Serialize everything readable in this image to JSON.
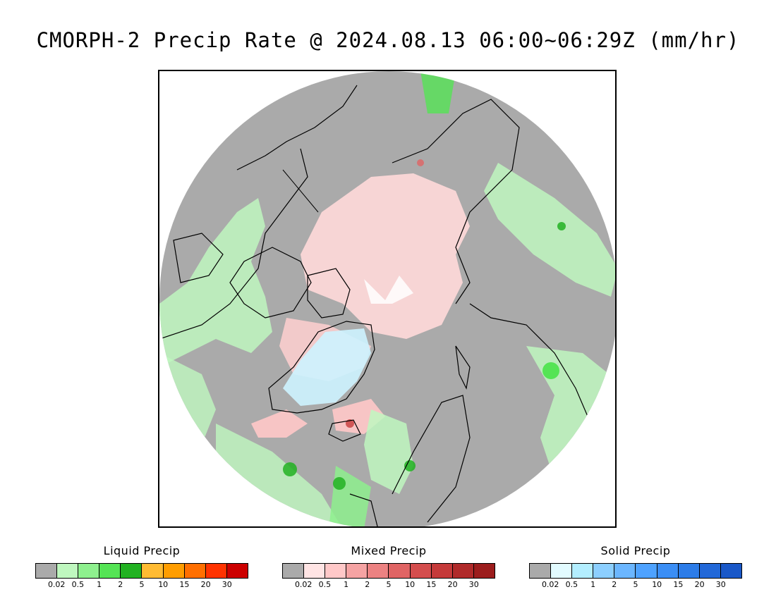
{
  "title": "CMORPH-2 Precip Rate @ 2024.08.13 06:00~06:29Z (mm/hr)",
  "map": {
    "projection": "north-polar-stereographic",
    "background_color": "#aaaaaa",
    "coastline_color": "#000000"
  },
  "legends": [
    {
      "title": "Liquid Precip",
      "colors": [
        "#aaaaaa",
        "#bff7bf",
        "#8ef08e",
        "#55e455",
        "#22b222",
        "#ffbb33",
        "#ff9d00",
        "#ff6f00",
        "#ff3300",
        "#cc0000"
      ],
      "ticks": [
        "0.02",
        "0.5",
        "1",
        "2",
        "5",
        "10",
        "15",
        "20",
        "30"
      ]
    },
    {
      "title": "Mixed Precip",
      "colors": [
        "#aaaaaa",
        "#ffe4e4",
        "#ffc8c8",
        "#f5a3a3",
        "#ec8282",
        "#e06464",
        "#d44d4d",
        "#c53a3a",
        "#b02a2a",
        "#9c1d1d"
      ],
      "ticks": [
        "0.02",
        "0.5",
        "1",
        "2",
        "5",
        "10",
        "15",
        "20",
        "30"
      ]
    },
    {
      "title": "Solid Precip",
      "colors": [
        "#aaaaaa",
        "#e2fbff",
        "#b3eeff",
        "#8ccfff",
        "#6bb6ff",
        "#4ea2ff",
        "#3b8ef5",
        "#2c7ce8",
        "#2268d8",
        "#1a58c8"
      ],
      "ticks": [
        "0.02",
        "0.5",
        "1",
        "2",
        "5",
        "10",
        "15",
        "20",
        "30"
      ]
    }
  ]
}
